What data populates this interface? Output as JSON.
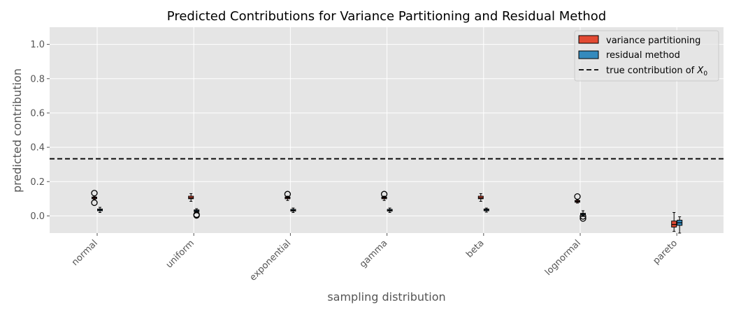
{
  "chart_data": {
    "type": "box",
    "title": "Predicted Contributions for Variance Partitioning and Residual Method",
    "xlabel": "sampling distribution",
    "ylabel": "predicted contribution",
    "ylim": [
      -0.1,
      1.1
    ],
    "yticks": [
      "0.0",
      "0.2",
      "0.4",
      "0.6",
      "0.8",
      "1.0"
    ],
    "ytick_values": [
      0.0,
      0.2,
      0.4,
      0.6,
      0.8,
      1.0
    ],
    "categories": [
      "normal",
      "uniform",
      "exponential",
      "gamma",
      "beta",
      "lognormal",
      "pareto"
    ],
    "grid": true,
    "legend_position": "top-right",
    "reference_line": {
      "value": 0.333,
      "style": "dashed",
      "color": "#000000"
    },
    "legend": [
      {
        "label": "variance partitioning",
        "type": "patch",
        "color": "#E24A33"
      },
      {
        "label": "residual method",
        "type": "patch",
        "color": "#348ABD"
      },
      {
        "label_prefix": "true contribution of ",
        "label_var": "X",
        "label_sub": "0",
        "type": "line"
      }
    ],
    "series": [
      {
        "name": "variance partitioning",
        "color": "#E24A33",
        "boxes": [
          {
            "whislo": 0.095,
            "q1": 0.1,
            "med": 0.105,
            "q3": 0.11,
            "whishi": 0.115,
            "fliers": [
              0.133,
              0.077
            ]
          },
          {
            "whislo": 0.085,
            "q1": 0.1,
            "med": 0.105,
            "q3": 0.115,
            "whishi": 0.13,
            "fliers": []
          },
          {
            "whislo": 0.09,
            "q1": 0.1,
            "med": 0.105,
            "q3": 0.11,
            "whishi": 0.115,
            "fliers": [
              0.127
            ]
          },
          {
            "whislo": 0.09,
            "q1": 0.1,
            "med": 0.105,
            "q3": 0.11,
            "whishi": 0.115,
            "fliers": [
              0.127
            ]
          },
          {
            "whislo": 0.085,
            "q1": 0.1,
            "med": 0.105,
            "q3": 0.115,
            "whishi": 0.13,
            "fliers": []
          },
          {
            "whislo": 0.075,
            "q1": 0.08,
            "med": 0.085,
            "q3": 0.09,
            "whishi": 0.095,
            "fliers": [
              0.113
            ]
          },
          {
            "whislo": -0.09,
            "q1": -0.065,
            "med": -0.05,
            "q3": -0.03,
            "whishi": 0.02,
            "fliers": []
          }
        ]
      },
      {
        "name": "residual method",
        "color": "#348ABD",
        "boxes": [
          {
            "whislo": 0.02,
            "q1": 0.03,
            "med": 0.035,
            "q3": 0.04,
            "whishi": 0.05,
            "fliers": []
          },
          {
            "whislo": 0.018,
            "q1": 0.025,
            "med": 0.03,
            "q3": 0.035,
            "whishi": 0.042,
            "fliers": [
              0.008,
              0.003
            ]
          },
          {
            "whislo": 0.02,
            "q1": 0.028,
            "med": 0.033,
            "q3": 0.038,
            "whishi": 0.046,
            "fliers": []
          },
          {
            "whislo": 0.02,
            "q1": 0.028,
            "med": 0.033,
            "q3": 0.038,
            "whishi": 0.046,
            "fliers": []
          },
          {
            "whislo": 0.022,
            "q1": 0.03,
            "med": 0.035,
            "q3": 0.04,
            "whishi": 0.046,
            "fliers": []
          },
          {
            "whislo": -0.003,
            "q1": 0.005,
            "med": 0.01,
            "q3": 0.015,
            "whishi": 0.03,
            "fliers": [
              -0.003,
              -0.015
            ]
          },
          {
            "whislo": -0.1,
            "q1": -0.055,
            "med": -0.04,
            "q3": -0.025,
            "whishi": -0.005,
            "fliers": []
          }
        ]
      }
    ]
  }
}
